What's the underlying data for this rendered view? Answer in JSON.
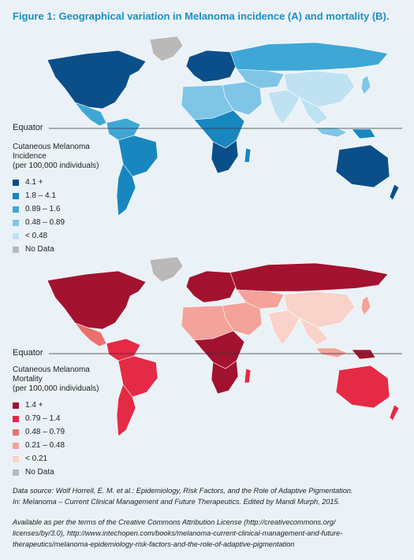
{
  "title": "Figure 1: Geographical variation in Melanoma incidence (A) and mortality (B).",
  "equator_label": "Equator",
  "incidence_legend": {
    "title_lines": [
      "Cutaneous Melanoma",
      "Incidence",
      "(per 100,000 individuals)"
    ],
    "items": [
      {
        "label": "4.1 +",
        "color": "#0b4f8a"
      },
      {
        "label": "1.8 – 4.1",
        "color": "#1887c0"
      },
      {
        "label": "0.89 – 1.6",
        "color": "#3fa7d6"
      },
      {
        "label": "0.48 – 0.89",
        "color": "#7fc5e6"
      },
      {
        "label": "< 0.48",
        "color": "#bfe2f2"
      },
      {
        "label": "No Data",
        "color": "#b9b9b9"
      }
    ]
  },
  "mortality_legend": {
    "title_lines": [
      "Cutaneous Melanoma",
      "Mortality",
      "(per 100,000 individuals)"
    ],
    "items": [
      {
        "label": "1.4 +",
        "color": "#a3122f"
      },
      {
        "label": "0.79 – 1.4",
        "color": "#e52a45"
      },
      {
        "label": "0.48 – 0.79",
        "color": "#ec6f70"
      },
      {
        "label": "0.21 – 0.48",
        "color": "#f3a39a"
      },
      {
        "label": "< 0.21",
        "color": "#f9d2c9"
      },
      {
        "label": "No Data",
        "color": "#b9b9b9"
      }
    ]
  },
  "source_lines": [
    "Data source: Wolf Horrell, E. M. et al.: Epidemiology, Risk Factors, and the Role of Adaptive Pigmentation.",
    "In: Melanoma – Current Clinical Management and Future Therapeutics. Edited by Mandi Murph, 2015."
  ],
  "license_lines": [
    "Available as per the terms of the Creative Commons Attribution License (http://creativecommons.org/",
    "licenses/by/3.0), http://www.intechopen.com/books/melanoma-current-clinical-management-and-future-",
    "therapeutics/melanoma-epidemiology-risk-factors-and-the-role-of-adaptive-pigmentation"
  ],
  "incidence_map": {
    "north_america": "#0b4f8a",
    "greenland": "#b9b9b9",
    "central_america": "#3fa7d6",
    "south_america_north": "#3fa7d6",
    "brazil": "#1887c0",
    "south_america_south": "#1887c0",
    "europe": "#0b4f8a",
    "russia": "#3fa7d6",
    "middle_east": "#7fc5e6",
    "central_asia": "#7fc5e6",
    "china": "#bfe2f2",
    "india": "#bfe2f2",
    "southeast_asia": "#bfe2f2",
    "north_africa": "#7fc5e6",
    "central_africa": "#1887c0",
    "southern_africa": "#0b4f8a",
    "madagascar": "#1887c0",
    "australia": "#0b4f8a",
    "new_zealand": "#0b4f8a",
    "japan": "#7fc5e6",
    "indonesia": "#7fc5e6",
    "new_guinea": "#1887c0"
  },
  "mortality_map": {
    "north_america": "#a3122f",
    "greenland": "#b9b9b9",
    "central_america": "#ec6f70",
    "south_america_north": "#e52a45",
    "brazil": "#e52a45",
    "south_america_south": "#e52a45",
    "europe": "#a3122f",
    "russia": "#a3122f",
    "middle_east": "#f3a39a",
    "central_asia": "#f3a39a",
    "china": "#f9d2c9",
    "india": "#f9d2c9",
    "southeast_asia": "#f9d2c9",
    "north_africa": "#f3a39a",
    "central_africa": "#a3122f",
    "southern_africa": "#a3122f",
    "madagascar": "#e52a45",
    "australia": "#e52a45",
    "new_zealand": "#e52a45",
    "japan": "#f3a39a",
    "indonesia": "#f3a39a",
    "new_guinea": "#a3122f"
  }
}
